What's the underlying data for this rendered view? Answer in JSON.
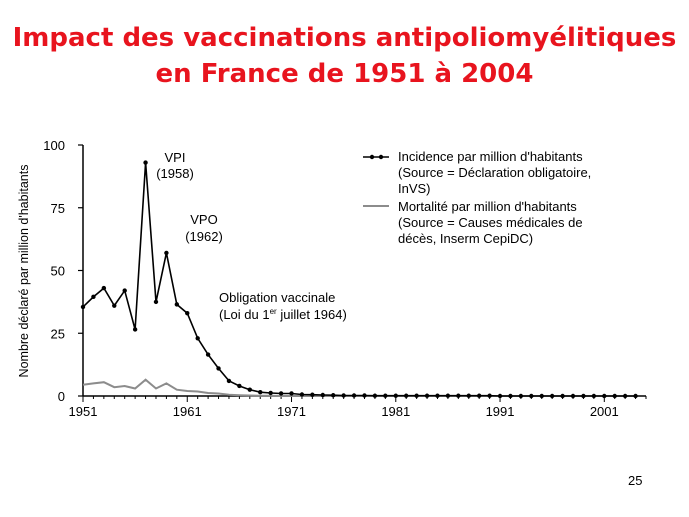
{
  "title_line1": "Impact des vaccinations antipoliomyélitiques",
  "title_line2": "en France de 1951 à 2004",
  "page_number": "25",
  "colors": {
    "title": "#e8141e",
    "incidence": "#000000",
    "mortality": "#8c8c8c"
  },
  "chart_data": {
    "type": "line",
    "title": "",
    "ylabel": "Nombre déclaré par million d'habitants",
    "xlabel": "",
    "xlim": [
      1951,
      2005
    ],
    "ylim": [
      0,
      100
    ],
    "x_ticks": [
      "1951",
      "1961",
      "1971",
      "1981",
      "1991",
      "2001"
    ],
    "y_ticks": [
      "0",
      "25",
      "50",
      "75",
      "100"
    ],
    "grid": false,
    "legend_position": "top-right",
    "series": [
      {
        "name": "Incidence par million d'habitants",
        "name_line2": "(Source = Déclaration obligatoire,",
        "name_line3": "InVS)",
        "marker": "dot",
        "x": [
          1951,
          1952,
          1953,
          1954,
          1955,
          1956,
          1957,
          1958,
          1959,
          1960,
          1961,
          1962,
          1963,
          1964,
          1965,
          1966,
          1967,
          1968,
          1969,
          1970,
          1971,
          1972,
          1973,
          1974,
          1975,
          1976,
          1977,
          1978,
          1979,
          1980,
          1981,
          1982,
          1983,
          1984,
          1985,
          1986,
          1987,
          1988,
          1989,
          1990,
          1991,
          1992,
          1993,
          1994,
          1995,
          1996,
          1997,
          1998,
          1999,
          2000,
          2001,
          2002,
          2003,
          2004
        ],
        "values": [
          35.5,
          39.5,
          43,
          36,
          42,
          26.5,
          93,
          37.5,
          57,
          36.5,
          33,
          23,
          16.5,
          11,
          6,
          4,
          2.5,
          1.5,
          1.2,
          1,
          1,
          0.6,
          0.5,
          0.4,
          0.3,
          0.2,
          0.2,
          0.2,
          0.1,
          0.1,
          0.1,
          0.1,
          0.1,
          0.1,
          0.1,
          0.1,
          0.1,
          0.1,
          0.1,
          0.1,
          0,
          0,
          0,
          0,
          0,
          0,
          0,
          0,
          0,
          0,
          0,
          0,
          0,
          0
        ]
      },
      {
        "name": "Mortalité par million d'habitants",
        "name_line2": "(Source = Causes médicales de",
        "name_line3": "décès, Inserm CepiDC)",
        "marker": "none",
        "x": [
          1951,
          1952,
          1953,
          1954,
          1955,
          1956,
          1957,
          1958,
          1959,
          1960,
          1961,
          1962,
          1963,
          1964,
          1965,
          1966,
          1967,
          1968,
          1969,
          1970,
          1971,
          1972,
          1973,
          1974,
          1975,
          1976,
          1977,
          1978,
          1979,
          1980,
          1981,
          1982,
          1983,
          1984,
          1985,
          1986,
          1987,
          1988,
          1989,
          1990,
          1991,
          1992,
          1993,
          1994,
          1995,
          1996,
          1997,
          1998,
          1999,
          2000,
          2001,
          2002,
          2003,
          2004
        ],
        "values": [
          4.5,
          5,
          5.5,
          3.5,
          4,
          3,
          6.5,
          3,
          5,
          2.5,
          2,
          1.8,
          1.2,
          1,
          0.5,
          0.3,
          0.2,
          0.1,
          0.1,
          0,
          0,
          0,
          0,
          0,
          0,
          0,
          0,
          0,
          0,
          0,
          0,
          0,
          0,
          0,
          0,
          0,
          0,
          0,
          0,
          0,
          0,
          0,
          0,
          0,
          0,
          0,
          0,
          0,
          0,
          0,
          0,
          0,
          0,
          0
        ]
      }
    ],
    "annotations": [
      {
        "id": "vpi",
        "line1": "VPI",
        "line2": "(1958)"
      },
      {
        "id": "vpo",
        "line1": "VPO",
        "line2": "(1962)"
      },
      {
        "id": "oblig",
        "line1": "Obligation vaccinale",
        "line2_pre": "(Loi du 1",
        "line2_sup": "er",
        "line2_post": " juillet 1964)"
      }
    ]
  }
}
